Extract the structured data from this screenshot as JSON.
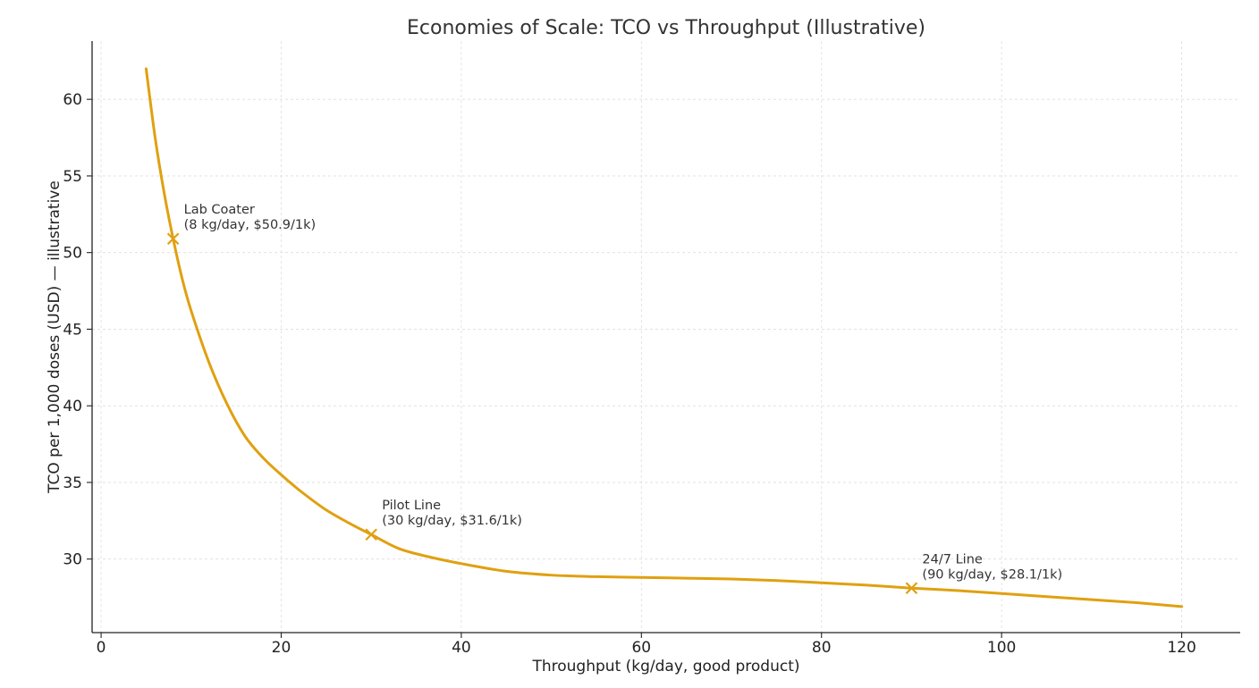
{
  "chart_data": {
    "type": "line",
    "title": "Economies of Scale: TCO vs Throughput (Illustrative)",
    "xlabel": "Throughput (kg/day, good product)",
    "ylabel": "TCO per 1,000 doses (USD) — illustrative",
    "xlim": [
      -1,
      126.5
    ],
    "ylim": [
      25.2,
      63.8
    ],
    "xticks": [
      0,
      20,
      40,
      60,
      80,
      100,
      120
    ],
    "yticks": [
      30,
      35,
      40,
      45,
      50,
      55,
      60
    ],
    "grid": true,
    "series": [
      {
        "color": "#e0a010",
        "x": [
          5,
          6,
          7,
          8,
          9,
          10,
          12,
          14,
          16,
          18,
          20,
          22,
          25,
          28,
          30,
          33,
          36,
          40,
          45,
          50,
          55,
          60,
          65,
          70,
          75,
          80,
          85,
          90,
          95,
          100,
          105,
          110,
          115,
          120
        ],
        "y": [
          62.0,
          57.5,
          53.9,
          50.9,
          48.3,
          46.2,
          42.8,
          40.1,
          38.0,
          36.6,
          35.5,
          34.5,
          33.2,
          32.2,
          31.6,
          30.7,
          30.2,
          29.7,
          29.2,
          28.95,
          28.85,
          28.8,
          28.75,
          28.7,
          28.6,
          28.45,
          28.3,
          28.1,
          27.95,
          27.75,
          27.55,
          27.35,
          27.15,
          26.9
        ]
      }
    ],
    "markers": [
      {
        "x": 8,
        "y": 50.9,
        "label_line1": "Lab Coater",
        "label_line2": "(8 kg/day, $50.9/1k)"
      },
      {
        "x": 30,
        "y": 31.6,
        "label_line1": "Pilot Line",
        "label_line2": "(30 kg/day, $31.6/1k)"
      },
      {
        "x": 90,
        "y": 28.1,
        "label_line1": "24/7 Line",
        "label_line2": "(90 kg/day, $28.1/1k)"
      }
    ]
  }
}
